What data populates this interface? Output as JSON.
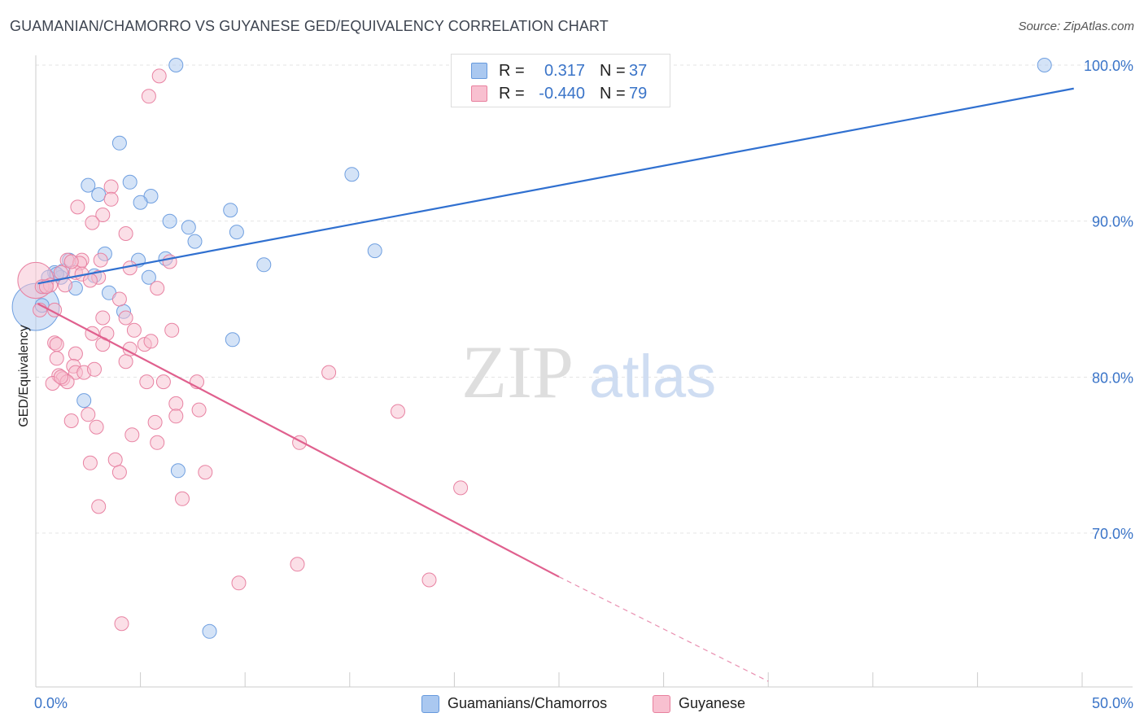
{
  "title": "GUAMANIAN/CHAMORRO VS GUYANESE GED/EQUIVALENCY CORRELATION CHART",
  "source": "Source: ZipAtlas.com",
  "watermark": {
    "zip": "ZIP",
    "atlas": "atlas"
  },
  "stats": [
    {
      "r_label": "R =",
      "r_value": "0.317",
      "n_label": "N =",
      "n_value": "37",
      "color": "#aac8f0",
      "border": "#6699dd"
    },
    {
      "r_label": "R =",
      "r_value": "-0.440",
      "n_label": "N =",
      "n_value": "79",
      "color": "#f8c0d0",
      "border": "#e8809e"
    }
  ],
  "legend": [
    {
      "label": "Guamanians/Chamorros",
      "color": "#aac8f0",
      "border": "#6699dd"
    },
    {
      "label": "Guyanese",
      "color": "#f8c0d0",
      "border": "#e8809e"
    }
  ],
  "chart_data": {
    "type": "scatter",
    "title": "GUAMANIAN/CHAMORRO VS GUYANESE GED/EQUIVALENCY CORRELATION CHART",
    "xlabel": "",
    "ylabel": "GED/Equivalency",
    "x_tick_labels": [
      "0.0%",
      "50.0%"
    ],
    "y_tick_labels": [
      "100.0%",
      "90.0%",
      "80.0%",
      "70.0%"
    ],
    "y_ticks": [
      100,
      90,
      80,
      70
    ],
    "xlim": [
      0,
      50
    ],
    "ylim": [
      60.5,
      101.5
    ],
    "grid": true,
    "legend_position": "bottom-center",
    "series": [
      {
        "name": "Guamanians/Chamorros",
        "color": "#6f9fe0",
        "fill": "#aac8f0",
        "line_color": "#3070d0",
        "trend": {
          "x0": 0.1,
          "y0": 86.0,
          "x1": 49.6,
          "y1": 98.5
        },
        "points": [
          [
            0.0,
            84.5,
            3.4
          ],
          [
            6.7,
            100.0,
            1
          ],
          [
            48.2,
            100.0,
            1
          ],
          [
            4.0,
            95.0,
            1
          ],
          [
            15.1,
            93.0,
            1
          ],
          [
            2.5,
            92.3,
            1
          ],
          [
            3.0,
            91.7,
            1
          ],
          [
            4.5,
            92.5,
            1
          ],
          [
            5.5,
            91.6,
            1
          ],
          [
            5.0,
            91.2,
            1
          ],
          [
            9.3,
            90.7,
            1
          ],
          [
            6.4,
            90.0,
            1
          ],
          [
            7.3,
            89.6,
            1
          ],
          [
            9.6,
            89.3,
            1
          ],
          [
            7.6,
            88.7,
            1
          ],
          [
            16.2,
            88.1,
            1
          ],
          [
            3.3,
            87.9,
            1
          ],
          [
            1.6,
            87.5,
            1
          ],
          [
            4.9,
            87.5,
            1
          ],
          [
            6.2,
            87.6,
            1
          ],
          [
            10.9,
            87.2,
            1
          ],
          [
            0.9,
            86.7,
            1
          ],
          [
            1.3,
            86.8,
            1
          ],
          [
            0.6,
            86.4,
            1
          ],
          [
            1.2,
            86.4,
            1
          ],
          [
            2.8,
            86.5,
            1
          ],
          [
            5.4,
            86.4,
            1
          ],
          [
            0.4,
            85.8,
            1
          ],
          [
            1.9,
            85.7,
            1
          ],
          [
            3.5,
            85.4,
            1
          ],
          [
            4.2,
            84.2,
            1
          ],
          [
            0.3,
            84.6,
            1
          ],
          [
            9.4,
            82.4,
            1
          ],
          [
            2.3,
            78.5,
            1
          ],
          [
            6.8,
            74.0,
            1
          ],
          [
            8.3,
            63.7,
            1
          ],
          [
            1.0,
            86.6,
            1
          ]
        ]
      },
      {
        "name": "Guyanese",
        "color": "#e882a2",
        "fill": "#f8c0d0",
        "line_color": "#e0608e",
        "trend": {
          "x0": 0.1,
          "y0": 84.7,
          "x1": 25.0,
          "y1": 67.2
        },
        "trend_dashed": {
          "x0": 25.0,
          "y0": 67.2,
          "x1": 35.0,
          "y1": 60.5
        },
        "points": [
          [
            0.0,
            86.2,
            2.6
          ],
          [
            5.9,
            99.3,
            1
          ],
          [
            5.4,
            98.0,
            1
          ],
          [
            3.6,
            92.2,
            1
          ],
          [
            3.6,
            91.4,
            1
          ],
          [
            2.0,
            90.9,
            1
          ],
          [
            3.2,
            90.4,
            1
          ],
          [
            2.7,
            89.9,
            1
          ],
          [
            4.3,
            89.2,
            1
          ],
          [
            1.5,
            87.5,
            1
          ],
          [
            2.2,
            87.5,
            1
          ],
          [
            2.1,
            87.3,
            1
          ],
          [
            6.4,
            87.4,
            1
          ],
          [
            4.5,
            87.0,
            1
          ],
          [
            1.2,
            86.7,
            1
          ],
          [
            1.9,
            86.7,
            1
          ],
          [
            3.0,
            86.4,
            1
          ],
          [
            0.3,
            85.8,
            1
          ],
          [
            0.7,
            85.9,
            1
          ],
          [
            1.4,
            85.9,
            1
          ],
          [
            5.8,
            85.7,
            1
          ],
          [
            0.9,
            84.3,
            1
          ],
          [
            4.0,
            85.0,
            1
          ],
          [
            0.2,
            84.3,
            1
          ],
          [
            3.2,
            83.8,
            1
          ],
          [
            4.3,
            83.8,
            1
          ],
          [
            4.7,
            83.0,
            1
          ],
          [
            6.5,
            83.0,
            1
          ],
          [
            2.7,
            82.8,
            1
          ],
          [
            3.4,
            82.8,
            1
          ],
          [
            0.9,
            82.2,
            1
          ],
          [
            1.0,
            82.1,
            1
          ],
          [
            3.2,
            82.1,
            1
          ],
          [
            5.2,
            82.1,
            1
          ],
          [
            5.5,
            82.3,
            1
          ],
          [
            4.5,
            81.8,
            1
          ],
          [
            1.9,
            81.5,
            1
          ],
          [
            1.0,
            81.2,
            1
          ],
          [
            4.3,
            81.0,
            1
          ],
          [
            1.8,
            80.7,
            1
          ],
          [
            1.9,
            80.3,
            1
          ],
          [
            2.3,
            80.3,
            1
          ],
          [
            2.8,
            80.5,
            1
          ],
          [
            14.0,
            80.3,
            1
          ],
          [
            1.1,
            80.1,
            1
          ],
          [
            1.3,
            79.9,
            1
          ],
          [
            0.8,
            79.6,
            1
          ],
          [
            1.5,
            79.7,
            1
          ],
          [
            5.3,
            79.7,
            1
          ],
          [
            6.1,
            79.7,
            1
          ],
          [
            7.7,
            79.7,
            1
          ],
          [
            6.7,
            78.3,
            1
          ],
          [
            7.8,
            77.9,
            1
          ],
          [
            17.3,
            77.8,
            1
          ],
          [
            2.5,
            77.6,
            1
          ],
          [
            1.7,
            77.2,
            1
          ],
          [
            5.7,
            77.1,
            1
          ],
          [
            6.7,
            77.5,
            1
          ],
          [
            2.9,
            76.8,
            1
          ],
          [
            4.6,
            76.3,
            1
          ],
          [
            5.8,
            75.8,
            1
          ],
          [
            12.6,
            75.8,
            1
          ],
          [
            3.8,
            74.7,
            1
          ],
          [
            2.6,
            74.5,
            1
          ],
          [
            4.0,
            73.9,
            1
          ],
          [
            8.1,
            73.9,
            1
          ],
          [
            20.3,
            72.9,
            1
          ],
          [
            7.0,
            72.2,
            1
          ],
          [
            3.0,
            71.7,
            1
          ],
          [
            12.5,
            68.0,
            1
          ],
          [
            9.7,
            66.8,
            1
          ],
          [
            18.8,
            67.0,
            1
          ],
          [
            4.1,
            64.2,
            1
          ],
          [
            0.5,
            85.8,
            1
          ],
          [
            2.2,
            86.6,
            1
          ],
          [
            1.2,
            80.0,
            1
          ],
          [
            1.7,
            87.4,
            1
          ],
          [
            3.1,
            87.5,
            1
          ],
          [
            2.6,
            86.2,
            1
          ]
        ]
      }
    ]
  }
}
